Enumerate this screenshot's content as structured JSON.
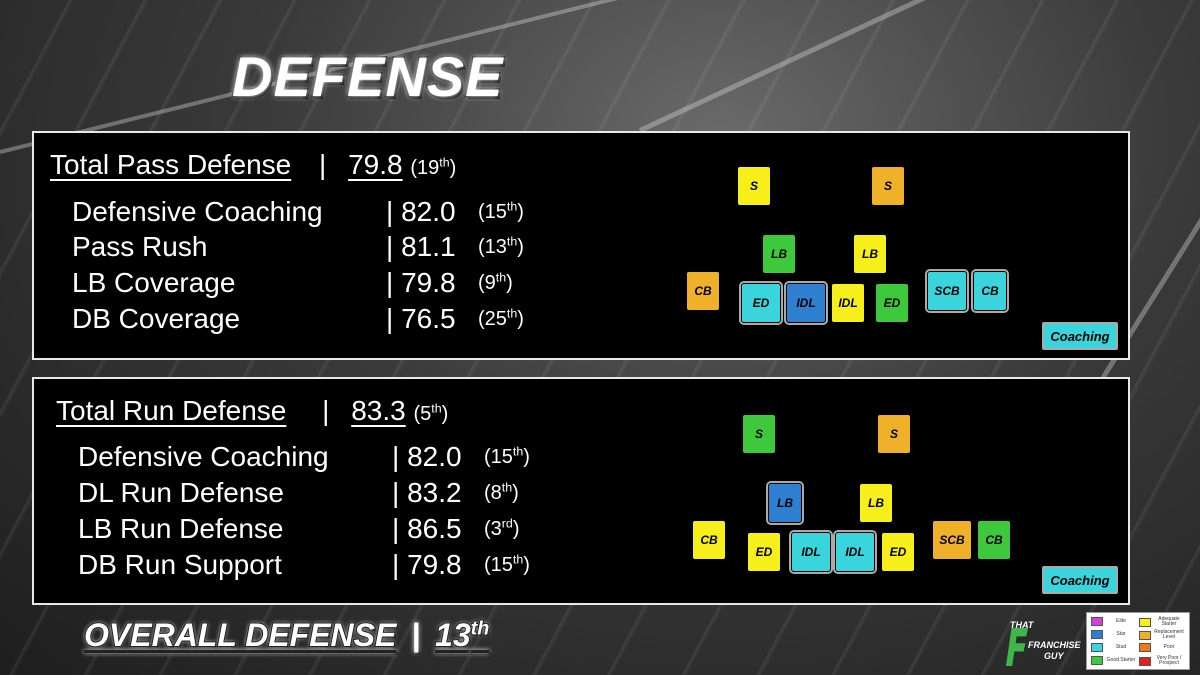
{
  "title": "DEFENSE",
  "pass": {
    "header": {
      "label": "Total Pass Defense",
      "sep": "|",
      "value": "79.8",
      "rank_n": "19",
      "rank_sfx": "th"
    },
    "rows": [
      {
        "label": "Defensive Coaching",
        "value": "82.0",
        "rank_n": "15",
        "rank_sfx": "th"
      },
      {
        "label": "Pass Rush",
        "value": "81.1",
        "rank_n": "13",
        "rank_sfx": "th"
      },
      {
        "label": "LB Coverage",
        "value": "79.8",
        "rank_n": "9",
        "rank_sfx": "th"
      },
      {
        "label": "DB Coverage",
        "value": "76.5",
        "rank_n": "25",
        "rank_sfx": "th"
      }
    ],
    "positions": {
      "s_left": {
        "label": "S",
        "color": "#f6ef1a"
      },
      "s_right": {
        "label": "S",
        "color": "#f0b12a"
      },
      "lb_left": {
        "label": "LB",
        "color": "#3ec93c"
      },
      "lb_right": {
        "label": "LB",
        "color": "#f6ef1a"
      },
      "cb_left": {
        "label": "CB",
        "color": "#f0b12a"
      },
      "ed_left": {
        "label": "ED",
        "color": "#3ad4dc"
      },
      "idl_left": {
        "label": "IDL",
        "color": "#2f7fd0"
      },
      "idl_right": {
        "label": "IDL",
        "color": "#f6ef1a"
      },
      "ed_right": {
        "label": "ED",
        "color": "#3ec93c"
      },
      "scb": {
        "label": "SCB",
        "color": "#3ad4dc"
      },
      "cb_right": {
        "label": "CB",
        "color": "#3ad4dc"
      }
    },
    "coaching": "Coaching"
  },
  "run": {
    "header": {
      "label": "Total Run Defense",
      "sep": "|",
      "value": "83.3",
      "rank_n": "5",
      "rank_sfx": "th"
    },
    "rows": [
      {
        "label": "Defensive Coaching",
        "value": "82.0",
        "rank_n": "15",
        "rank_sfx": "th"
      },
      {
        "label": "DL Run Defense",
        "value": "83.2",
        "rank_n": "8",
        "rank_sfx": "th"
      },
      {
        "label": "LB Run Defense",
        "value": "86.5",
        "rank_n": "3",
        "rank_sfx": "rd"
      },
      {
        "label": "DB Run Support",
        "value": "79.8",
        "rank_n": "15",
        "rank_sfx": "th"
      }
    ],
    "positions": {
      "s_left": {
        "label": "S",
        "color": "#3ec93c"
      },
      "s_right": {
        "label": "S",
        "color": "#f0b12a"
      },
      "lb_left": {
        "label": "LB",
        "color": "#2f7fd0"
      },
      "lb_right": {
        "label": "LB",
        "color": "#f6ef1a"
      },
      "cb_left": {
        "label": "CB",
        "color": "#f6ef1a"
      },
      "ed_left": {
        "label": "ED",
        "color": "#f6ef1a"
      },
      "idl_left": {
        "label": "IDL",
        "color": "#3ad4dc"
      },
      "idl_right": {
        "label": "IDL",
        "color": "#3ad4dc"
      },
      "ed_right": {
        "label": "ED",
        "color": "#f6ef1a"
      },
      "scb": {
        "label": "SCB",
        "color": "#f0b12a"
      },
      "cb_right": {
        "label": "CB",
        "color": "#3ec93c"
      }
    },
    "coaching": "Coaching"
  },
  "overall": {
    "label": "OVERALL DEFENSE",
    "sep": "|",
    "rank_n": "13",
    "rank_sfx": "th"
  },
  "logo": {
    "line1": "THAT",
    "line2": "FRANCHISE",
    "line3": "GUY"
  },
  "legend": [
    {
      "label": "Elite",
      "color": "#d63fd6"
    },
    {
      "label": "Adequate Starter",
      "color": "#f6ef1a"
    },
    {
      "label": "Star",
      "color": "#2f7fd0"
    },
    {
      "label": "Replacement Level",
      "color": "#f0b12a"
    },
    {
      "label": "Stud",
      "color": "#3ad4dc"
    },
    {
      "label": "Poor",
      "color": "#f07a1a"
    },
    {
      "label": "Good Starter",
      "color": "#3ec93c"
    },
    {
      "label": "Very Poor / Prospect",
      "color": "#e02020"
    }
  ]
}
